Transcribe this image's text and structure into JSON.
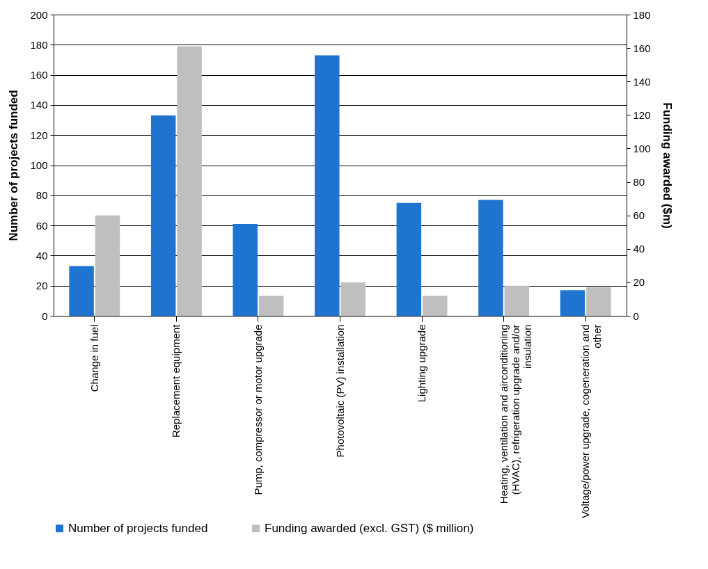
{
  "chart_data": {
    "type": "bar",
    "categories": [
      "Change in fuel",
      "Replacement equipment",
      "Pump, compressor or motor upgrade",
      "Photovoltaic (PV) installation",
      "Lighting upgrade",
      "Heating, ventilation and airconditioning (HVAC), refrigeration upgrade and/or insulation",
      "Voltage/power upgrade, cogeneration and other"
    ],
    "series": [
      {
        "name": "Number of projects funded",
        "color": "#1f74d0",
        "values": [
          33,
          133,
          61,
          173,
          75,
          77,
          17
        ]
      },
      {
        "name": "Funding awarded (excl. GST) ($ million)",
        "color": "#bfbfbf",
        "axis": "y2",
        "values": [
          60,
          161,
          12,
          20,
          12,
          18,
          17
        ]
      }
    ],
    "ylabel": "Number of projects funded",
    "y2label": "Funding awarded ($m)",
    "ylim": [
      0,
      200
    ],
    "yticks": [
      0,
      20,
      40,
      60,
      80,
      100,
      120,
      140,
      160,
      180,
      200
    ],
    "y2lim": [
      0,
      180
    ],
    "y2ticks": [
      0,
      20,
      40,
      60,
      80,
      100,
      120,
      140,
      160,
      180
    ],
    "grid": "y",
    "legend": "bottom left"
  }
}
